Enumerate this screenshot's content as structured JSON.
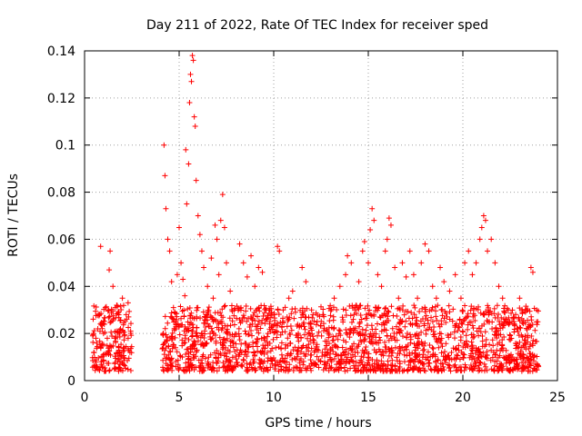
{
  "chart_data": {
    "type": "scatter",
    "title": "Day 211 of 2022, Rate Of TEC Index for receiver sped",
    "xlabel": "GPS time / hours",
    "ylabel": "ROTI / TECUs",
    "xlim": [
      0,
      25
    ],
    "ylim": [
      0,
      0.14
    ],
    "xticks": [
      0,
      5,
      10,
      15,
      20,
      25
    ],
    "yticks": [
      0,
      0.02,
      0.04,
      0.06,
      0.08,
      0.1,
      0.12,
      0.14
    ],
    "xtick_labels": [
      "0",
      "5",
      "10",
      "15",
      "20",
      "25"
    ],
    "ytick_labels": [
      "0",
      "0.02",
      "0.04",
      "0.06",
      "0.08",
      "0.1",
      "0.12",
      "0.14"
    ],
    "grid": true,
    "marker": "+",
    "color": "#ff0000",
    "series": [
      {
        "points": [
          [
            0.5,
            0.012
          ],
          [
            0.6,
            0.018
          ],
          [
            0.7,
            0.022
          ],
          [
            0.8,
            0.028
          ],
          [
            0.85,
            0.057
          ],
          [
            0.9,
            0.015
          ],
          [
            1.0,
            0.02
          ],
          [
            1.1,
            0.031
          ],
          [
            1.2,
            0.018
          ],
          [
            1.3,
            0.047
          ],
          [
            1.35,
            0.055
          ],
          [
            1.4,
            0.025
          ],
          [
            1.5,
            0.04
          ],
          [
            1.6,
            0.018
          ],
          [
            1.7,
            0.032
          ],
          [
            1.8,
            0.014
          ],
          [
            1.9,
            0.022
          ],
          [
            2.0,
            0.035
          ],
          [
            2.1,
            0.019
          ],
          [
            2.2,
            0.028
          ],
          [
            2.3,
            0.033
          ],
          [
            2.4,
            0.012
          ],
          [
            4.2,
            0.1
          ],
          [
            4.25,
            0.087
          ],
          [
            4.3,
            0.073
          ],
          [
            4.4,
            0.06
          ],
          [
            4.5,
            0.055
          ],
          [
            4.6,
            0.042
          ],
          [
            4.7,
            0.031
          ],
          [
            4.8,
            0.025
          ],
          [
            4.9,
            0.045
          ],
          [
            5.0,
            0.065
          ],
          [
            5.1,
            0.05
          ],
          [
            5.2,
            0.043
          ],
          [
            5.3,
            0.036
          ],
          [
            5.35,
            0.098
          ],
          [
            5.4,
            0.075
          ],
          [
            5.5,
            0.092
          ],
          [
            5.55,
            0.118
          ],
          [
            5.6,
            0.13
          ],
          [
            5.65,
            0.127
          ],
          [
            5.7,
            0.138
          ],
          [
            5.75,
            0.136
          ],
          [
            5.8,
            0.112
          ],
          [
            5.85,
            0.108
          ],
          [
            5.9,
            0.085
          ],
          [
            6.0,
            0.07
          ],
          [
            6.1,
            0.062
          ],
          [
            6.2,
            0.055
          ],
          [
            6.3,
            0.048
          ],
          [
            6.5,
            0.04
          ],
          [
            6.7,
            0.052
          ],
          [
            6.8,
            0.035
          ],
          [
            6.9,
            0.066
          ],
          [
            7.0,
            0.06
          ],
          [
            7.1,
            0.045
          ],
          [
            7.2,
            0.068
          ],
          [
            7.3,
            0.079
          ],
          [
            7.4,
            0.065
          ],
          [
            7.5,
            0.05
          ],
          [
            7.7,
            0.038
          ],
          [
            7.9,
            0.03
          ],
          [
            8.2,
            0.058
          ],
          [
            8.4,
            0.05
          ],
          [
            8.6,
            0.044
          ],
          [
            8.8,
            0.053
          ],
          [
            9.0,
            0.04
          ],
          [
            9.2,
            0.048
          ],
          [
            9.4,
            0.046
          ],
          [
            9.6,
            0.03
          ],
          [
            9.8,
            0.025
          ],
          [
            10.2,
            0.057
          ],
          [
            10.3,
            0.055
          ],
          [
            10.5,
            0.03
          ],
          [
            10.8,
            0.035
          ],
          [
            11.0,
            0.038
          ],
          [
            11.3,
            0.02
          ],
          [
            11.5,
            0.048
          ],
          [
            11.7,
            0.042
          ],
          [
            12.0,
            0.03
          ],
          [
            12.3,
            0.025
          ],
          [
            12.6,
            0.028
          ],
          [
            12.9,
            0.02
          ],
          [
            13.2,
            0.035
          ],
          [
            13.5,
            0.04
          ],
          [
            13.8,
            0.045
          ],
          [
            13.9,
            0.053
          ],
          [
            14.1,
            0.05
          ],
          [
            14.3,
            0.03
          ],
          [
            14.5,
            0.042
          ],
          [
            14.7,
            0.055
          ],
          [
            14.8,
            0.059
          ],
          [
            15.0,
            0.05
          ],
          [
            15.1,
            0.064
          ],
          [
            15.2,
            0.073
          ],
          [
            15.3,
            0.068
          ],
          [
            15.5,
            0.045
          ],
          [
            15.7,
            0.04
          ],
          [
            15.9,
            0.055
          ],
          [
            16.0,
            0.06
          ],
          [
            16.1,
            0.069
          ],
          [
            16.2,
            0.066
          ],
          [
            16.4,
            0.048
          ],
          [
            16.6,
            0.035
          ],
          [
            16.8,
            0.05
          ],
          [
            17.0,
            0.044
          ],
          [
            17.2,
            0.055
          ],
          [
            17.4,
            0.045
          ],
          [
            17.6,
            0.035
          ],
          [
            17.8,
            0.05
          ],
          [
            18.0,
            0.058
          ],
          [
            18.2,
            0.055
          ],
          [
            18.4,
            0.04
          ],
          [
            18.6,
            0.035
          ],
          [
            18.8,
            0.048
          ],
          [
            19.0,
            0.042
          ],
          [
            19.3,
            0.038
          ],
          [
            19.6,
            0.045
          ],
          [
            19.9,
            0.035
          ],
          [
            20.1,
            0.05
          ],
          [
            20.3,
            0.055
          ],
          [
            20.5,
            0.045
          ],
          [
            20.7,
            0.05
          ],
          [
            20.9,
            0.06
          ],
          [
            21.0,
            0.065
          ],
          [
            21.1,
            0.07
          ],
          [
            21.2,
            0.068
          ],
          [
            21.3,
            0.055
          ],
          [
            21.5,
            0.06
          ],
          [
            21.7,
            0.05
          ],
          [
            21.9,
            0.04
          ],
          [
            22.1,
            0.035
          ],
          [
            22.4,
            0.03
          ],
          [
            22.7,
            0.025
          ],
          [
            23.0,
            0.035
          ],
          [
            23.3,
            0.03
          ],
          [
            23.6,
            0.048
          ],
          [
            23.7,
            0.046
          ],
          [
            23.9,
            0.03
          ]
        ]
      }
    ],
    "density": {
      "baseline_low": 0.004,
      "baseline_high": 0.032,
      "active_ranges": [
        [
          0.4,
          2.5
        ],
        [
          4.1,
          24.0
        ]
      ]
    }
  }
}
